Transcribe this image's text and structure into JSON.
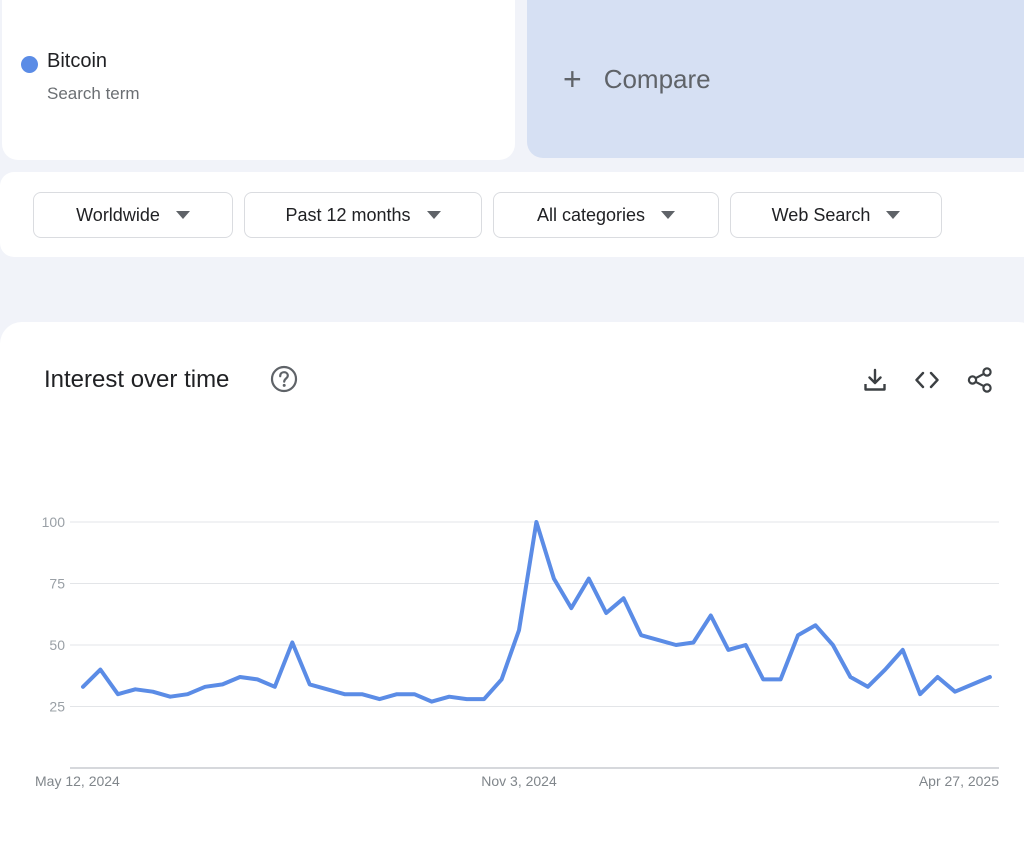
{
  "search_term": {
    "name": "Bitcoin",
    "subtitle": "Search term",
    "color": "#5b8ce6"
  },
  "compare": {
    "label": "Compare",
    "icon": "plus-icon"
  },
  "filters": [
    {
      "label": "Worldwide",
      "icon": "caret-down-icon"
    },
    {
      "label": "Past 12 months",
      "icon": "caret-down-icon"
    },
    {
      "label": "All categories",
      "icon": "caret-down-icon"
    },
    {
      "label": "Web Search",
      "icon": "caret-down-icon"
    }
  ],
  "interest_panel": {
    "title": "Interest over time",
    "icons": [
      "help-icon",
      "download-icon",
      "embed-code-icon",
      "share-icon"
    ]
  },
  "chart_data": {
    "type": "line",
    "title": "Interest over time",
    "ylim": [
      0,
      100
    ],
    "yticks": [
      25,
      50,
      75,
      100
    ],
    "grid": true,
    "x_range": [
      "2024-05-12",
      "2025-04-27"
    ],
    "x_tick_labels": [
      {
        "label": "May 12, 2024",
        "date": "2024-05-12"
      },
      {
        "label": "Nov 3, 2024",
        "date": "2024-11-03"
      },
      {
        "label": "Apr 27, 2025",
        "date": "2025-04-27"
      }
    ],
    "series": [
      {
        "color": "#5b8ce6",
        "points": [
          [
            "2024-05-12",
            33
          ],
          [
            "2024-05-19",
            40
          ],
          [
            "2024-05-26",
            30
          ],
          [
            "2024-06-02",
            32
          ],
          [
            "2024-06-09",
            31
          ],
          [
            "2024-06-16",
            29
          ],
          [
            "2024-06-23",
            30
          ],
          [
            "2024-06-30",
            33
          ],
          [
            "2024-07-07",
            34
          ],
          [
            "2024-07-14",
            37
          ],
          [
            "2024-07-21",
            36
          ],
          [
            "2024-07-28",
            33
          ],
          [
            "2024-08-04",
            51
          ],
          [
            "2024-08-11",
            34
          ],
          [
            "2024-08-18",
            32
          ],
          [
            "2024-08-25",
            30
          ],
          [
            "2024-09-01",
            30
          ],
          [
            "2024-09-08",
            28
          ],
          [
            "2024-09-15",
            30
          ],
          [
            "2024-09-22",
            30
          ],
          [
            "2024-09-29",
            27
          ],
          [
            "2024-10-06",
            29
          ],
          [
            "2024-10-13",
            28
          ],
          [
            "2024-10-20",
            28
          ],
          [
            "2024-10-27",
            36
          ],
          [
            "2024-11-03",
            56
          ],
          [
            "2024-11-10",
            100
          ],
          [
            "2024-11-17",
            77
          ],
          [
            "2024-11-24",
            65
          ],
          [
            "2024-12-01",
            77
          ],
          [
            "2024-12-08",
            63
          ],
          [
            "2024-12-15",
            69
          ],
          [
            "2024-12-22",
            54
          ],
          [
            "2024-12-29",
            52
          ],
          [
            "2025-01-05",
            50
          ],
          [
            "2025-01-12",
            51
          ],
          [
            "2025-01-19",
            62
          ],
          [
            "2025-01-26",
            48
          ],
          [
            "2025-02-02",
            50
          ],
          [
            "2025-02-09",
            36
          ],
          [
            "2025-02-16",
            36
          ],
          [
            "2025-02-23",
            54
          ],
          [
            "2025-03-02",
            58
          ],
          [
            "2025-03-09",
            50
          ],
          [
            "2025-03-16",
            37
          ],
          [
            "2025-03-23",
            33
          ],
          [
            "2025-03-30",
            40
          ],
          [
            "2025-04-06",
            48
          ],
          [
            "2025-04-13",
            30
          ],
          [
            "2025-04-20",
            37
          ],
          [
            "2025-04-27",
            31
          ],
          [
            "2025-05-04",
            34
          ],
          [
            "2025-05-11",
            37
          ]
        ]
      }
    ]
  }
}
